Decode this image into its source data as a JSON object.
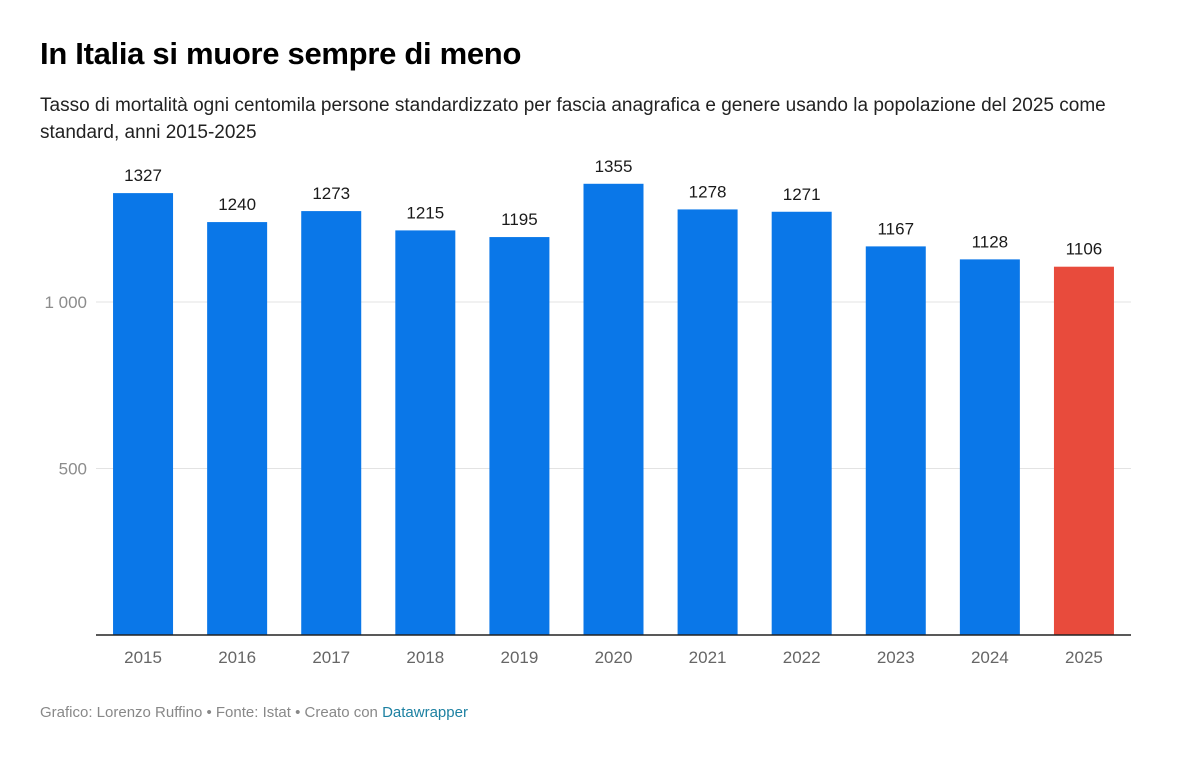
{
  "header": {
    "title": "In Italia si muore sempre di meno",
    "subtitle": "Tasso di mortalità ogni centomila persone standardizzato per fascia anagrafica e genere usando la popolazione del 2025 come standard, anni 2015-2025"
  },
  "footer": {
    "credit": "Grafico: Lorenzo Ruffino • Fonte: Istat • Creato con ",
    "tool": "Datawrapper"
  },
  "chart_data": {
    "type": "bar",
    "categories": [
      "2015",
      "2016",
      "2017",
      "2018",
      "2019",
      "2020",
      "2021",
      "2022",
      "2023",
      "2024",
      "2025"
    ],
    "values": [
      1327,
      1240,
      1273,
      1215,
      1195,
      1355,
      1278,
      1271,
      1167,
      1128,
      1106
    ],
    "y_ticks": [
      500,
      1000
    ],
    "y_tick_labels": [
      "500",
      "1 000"
    ],
    "ylim": [
      0,
      1500
    ],
    "grid": true,
    "colors": {
      "default": "#0a77e8",
      "highlight": "#e84b3c",
      "highlight_category": "2025"
    }
  }
}
